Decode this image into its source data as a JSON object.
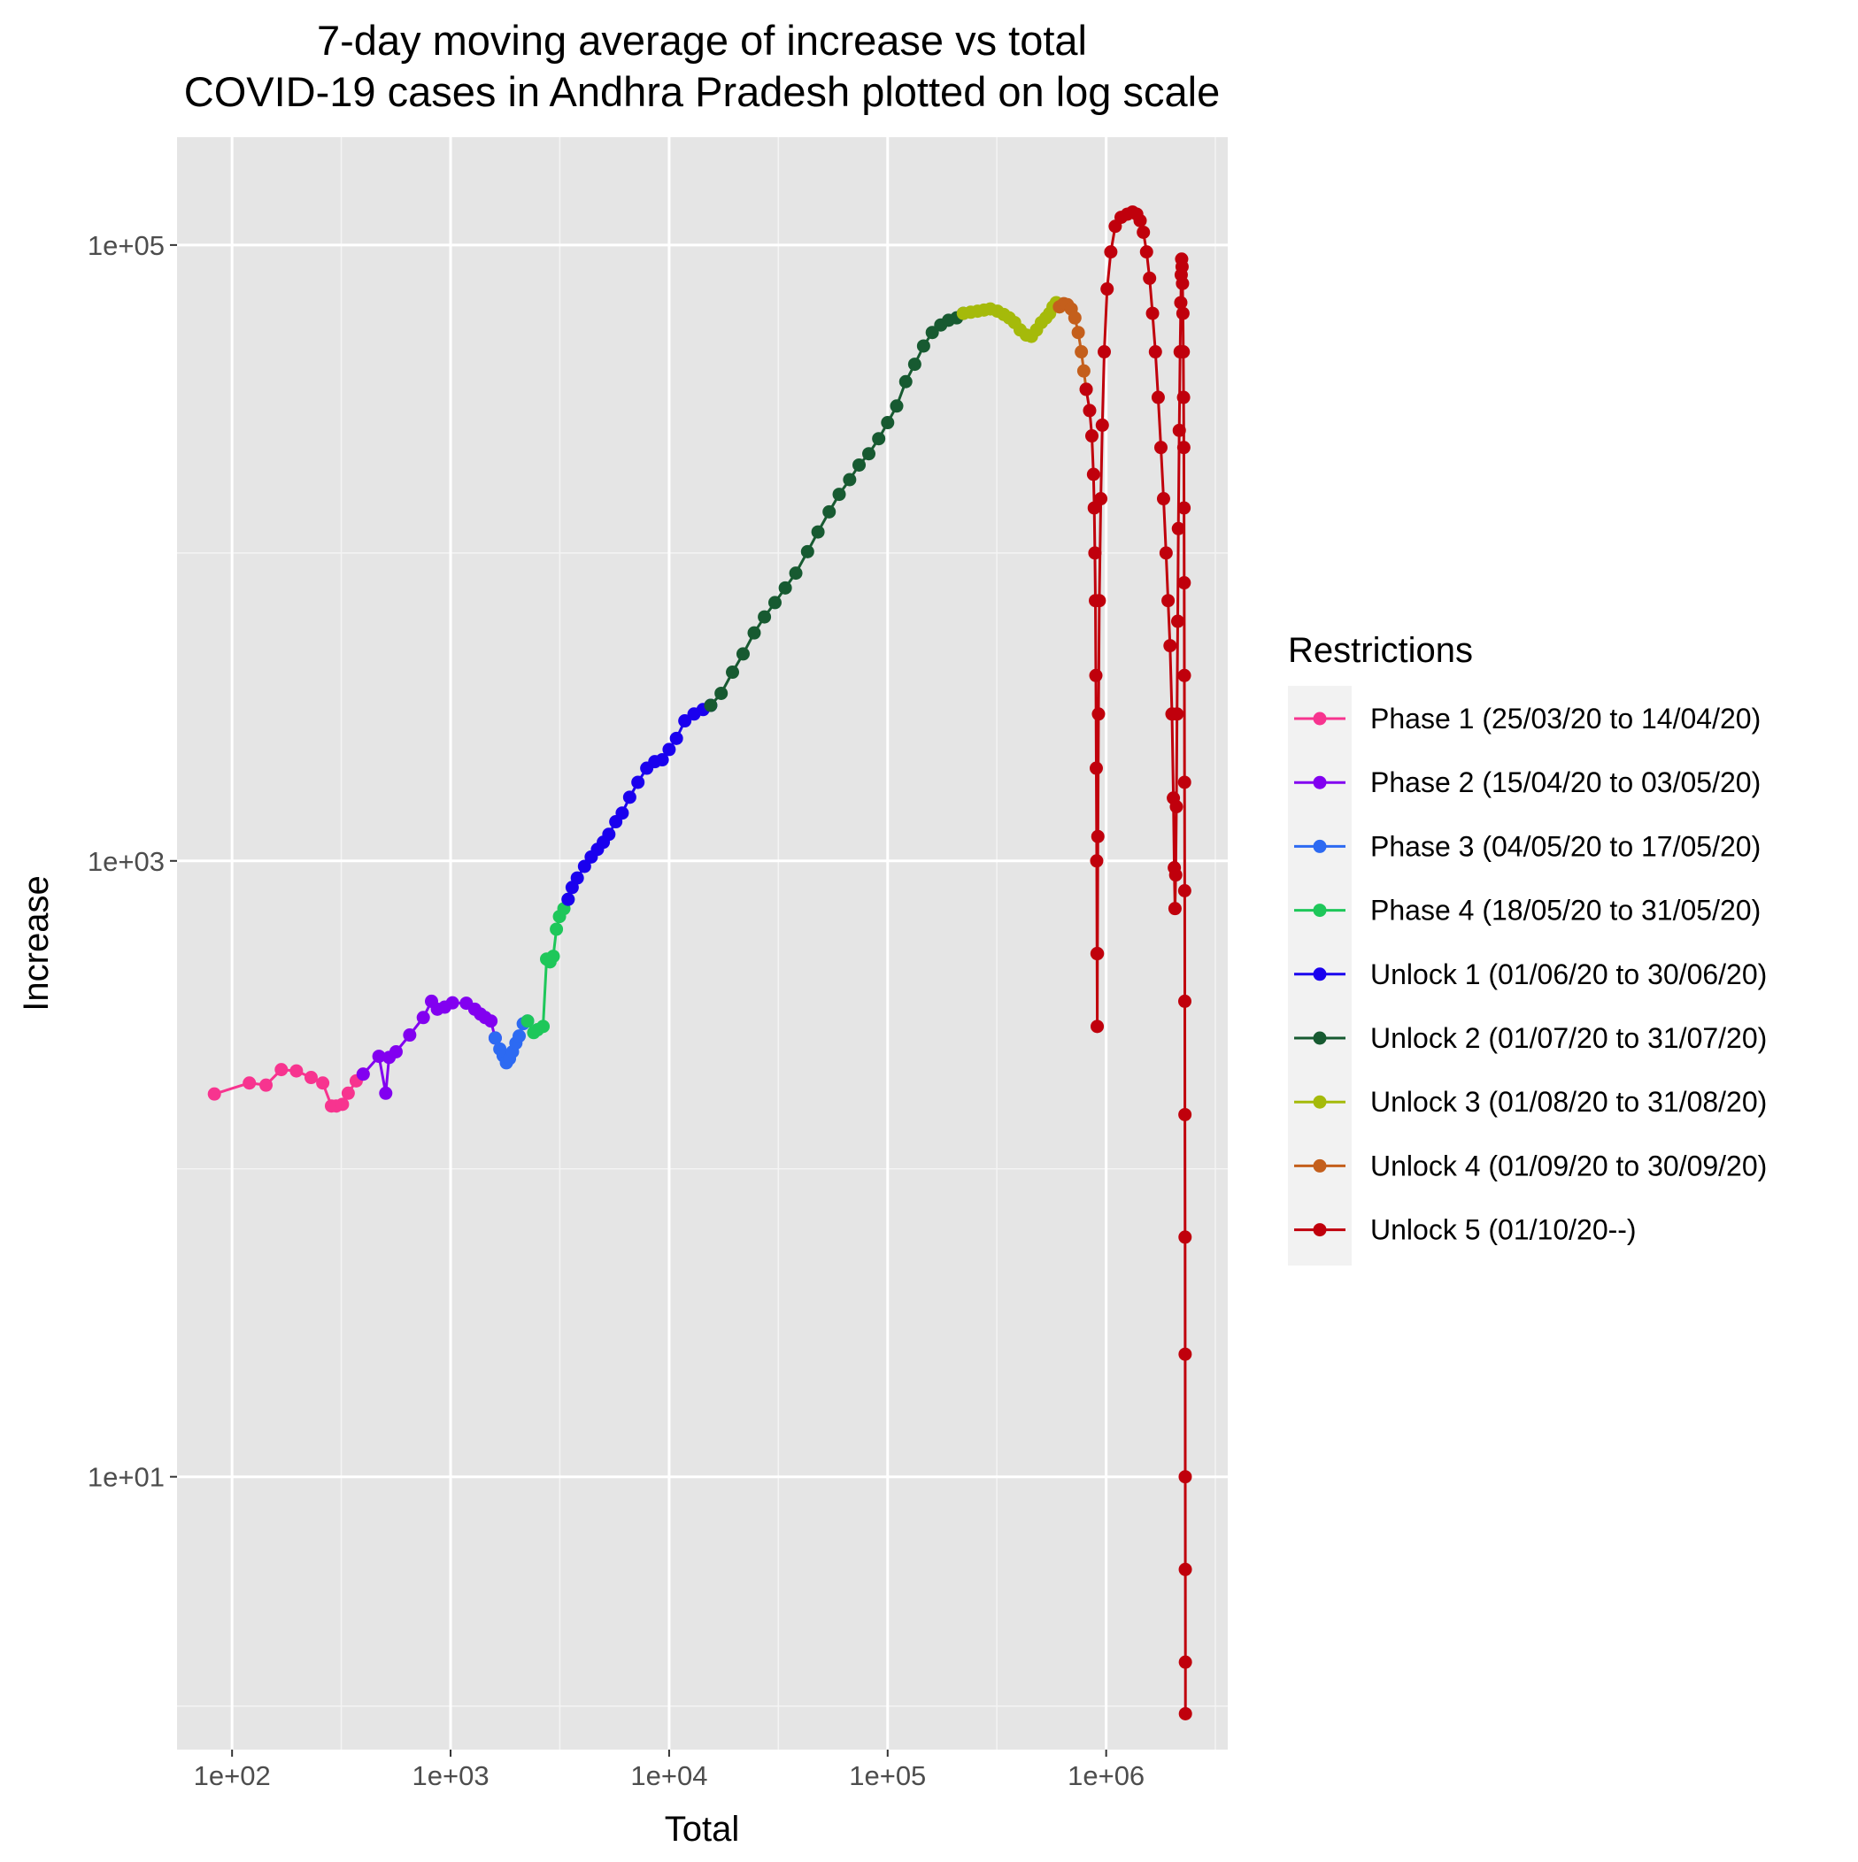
{
  "chart_data": {
    "type": "line",
    "title_lines": [
      "7-day moving average of increase vs total",
      "COVID-19 cases in Andhra Pradesh plotted on log scale"
    ],
    "xlabel": "Total",
    "ylabel": "Increase",
    "x_scale": "log10",
    "y_scale": "log10",
    "xlim": [
      56,
      3600000
    ],
    "ylim": [
      1.3,
      224000
    ],
    "x_ticks": [
      {
        "value": 100,
        "label": "1e+02"
      },
      {
        "value": 1000,
        "label": "1e+03"
      },
      {
        "value": 10000,
        "label": "1e+04"
      },
      {
        "value": 100000,
        "label": "1e+05"
      },
      {
        "value": 1000000,
        "label": "1e+06"
      }
    ],
    "y_ticks": [
      {
        "value": 10,
        "label": "1e+01"
      },
      {
        "value": 1000,
        "label": "1e+03"
      },
      {
        "value": 100000,
        "label": "1e+05"
      }
    ],
    "x_minor_ticks": [
      316,
      3160,
      31600,
      316000,
      3160000
    ],
    "y_minor_ticks": [
      1.8,
      100,
      10000
    ],
    "grid": true,
    "background": "#e5e5e5",
    "legend_title": "Restrictions",
    "legend_position": "right",
    "series": [
      {
        "name": "Phase 1 (25/03/20 to 14/04/20)",
        "color": "#f7348f",
        "points": [
          [
            83,
            175
          ],
          [
            120,
            190
          ],
          [
            143,
            187
          ],
          [
            168,
            210
          ],
          [
            197,
            208
          ],
          [
            230,
            198
          ],
          [
            260,
            190
          ],
          [
            285,
            160
          ],
          [
            300,
            160
          ],
          [
            320,
            162
          ],
          [
            340,
            176
          ],
          [
            370,
            193
          ],
          [
            398,
            203
          ]
        ]
      },
      {
        "name": "Phase 2 (15/04/20 to 03/05/20)",
        "color": "#8200f0",
        "points": [
          [
            398,
            203
          ],
          [
            470,
            232
          ],
          [
            505,
            176
          ],
          [
            523,
            230
          ],
          [
            563,
            240
          ],
          [
            650,
            272
          ],
          [
            750,
            310
          ],
          [
            818,
            350
          ],
          [
            870,
            330
          ],
          [
            940,
            335
          ],
          [
            1020,
            346
          ],
          [
            1180,
            345
          ],
          [
            1290,
            330
          ],
          [
            1370,
            318
          ],
          [
            1440,
            310
          ],
          [
            1530,
            302
          ],
          [
            1600,
            266
          ]
        ]
      },
      {
        "name": "Phase 3 (04/05/20 to 17/05/20)",
        "color": "#2d6af2",
        "points": [
          [
            1600,
            266
          ],
          [
            1680,
            245
          ],
          [
            1740,
            233
          ],
          [
            1800,
            221
          ],
          [
            1860,
            228
          ],
          [
            1920,
            240
          ],
          [
            1990,
            256
          ],
          [
            2060,
            270
          ],
          [
            2150,
            296
          ],
          [
            2250,
            302
          ]
        ]
      },
      {
        "name": "Phase 4 (18/05/20 to 31/05/20)",
        "color": "#1ec75a",
        "points": [
          [
            2250,
            302
          ],
          [
            2400,
            277
          ],
          [
            2500,
            283
          ],
          [
            2650,
            290
          ],
          [
            2750,
            480
          ],
          [
            2850,
            470
          ],
          [
            2950,
            490
          ],
          [
            3050,
            600
          ],
          [
            3150,
            660
          ],
          [
            3300,
            700
          ],
          [
            3450,
            750
          ]
        ]
      },
      {
        "name": "Unlock 1 (01/06/20 to 30/06/20)",
        "color": "#1a00ee",
        "points": [
          [
            3450,
            750
          ],
          [
            3600,
            820
          ],
          [
            3800,
            880
          ],
          [
            4100,
            960
          ],
          [
            4400,
            1030
          ],
          [
            4700,
            1090
          ],
          [
            5000,
            1150
          ],
          [
            5300,
            1220
          ],
          [
            5700,
            1340
          ],
          [
            6100,
            1430
          ],
          [
            6600,
            1610
          ],
          [
            7200,
            1800
          ],
          [
            7900,
            2000
          ],
          [
            8600,
            2100
          ],
          [
            9300,
            2130
          ],
          [
            10000,
            2300
          ],
          [
            10800,
            2500
          ],
          [
            11800,
            2850
          ],
          [
            13000,
            3000
          ],
          [
            14300,
            3100
          ],
          [
            15500,
            3200
          ]
        ]
      },
      {
        "name": "Unlock 2 (01/07/20 to 31/07/20)",
        "color": "#175a31",
        "points": [
          [
            15500,
            3200
          ],
          [
            17300,
            3500
          ],
          [
            19500,
            4100
          ],
          [
            21800,
            4700
          ],
          [
            24500,
            5500
          ],
          [
            27300,
            6200
          ],
          [
            30500,
            6900
          ],
          [
            34000,
            7700
          ],
          [
            38000,
            8600
          ],
          [
            43000,
            10100
          ],
          [
            48000,
            11700
          ],
          [
            54000,
            13600
          ],
          [
            60000,
            15500
          ],
          [
            67000,
            17300
          ],
          [
            74000,
            19300
          ],
          [
            82000,
            21000
          ],
          [
            91000,
            23500
          ],
          [
            100000,
            26500
          ],
          [
            110000,
            30000
          ],
          [
            121000,
            36000
          ],
          [
            133000,
            41000
          ],
          [
            146000,
            47000
          ],
          [
            160000,
            52000
          ],
          [
            175000,
            55000
          ],
          [
            190000,
            57000
          ],
          [
            207000,
            58000
          ],
          [
            222000,
            60000
          ]
        ]
      },
      {
        "name": "Unlock 3 (01/08/20 to 31/08/20)",
        "color": "#a5ba0a",
        "points": [
          [
            222000,
            60000
          ],
          [
            240000,
            60500
          ],
          [
            258000,
            61000
          ],
          [
            276000,
            61500
          ],
          [
            295000,
            62000
          ],
          [
            318000,
            61000
          ],
          [
            340000,
            59500
          ],
          [
            360000,
            58000
          ],
          [
            381000,
            56000
          ],
          [
            404000,
            53000
          ],
          [
            431000,
            51000
          ],
          [
            455000,
            50500
          ],
          [
            480000,
            53000
          ],
          [
            505000,
            56000
          ],
          [
            530000,
            58000
          ],
          [
            551000,
            60000
          ],
          [
            571000,
            63000
          ],
          [
            591000,
            65000
          ],
          [
            611000,
            63000
          ]
        ]
      },
      {
        "name": "Unlock 4 (01/09/20 to 30/09/20)",
        "color": "#c45f1c",
        "points": [
          [
            611000,
            63000
          ],
          [
            640000,
            64500
          ],
          [
            665000,
            64000
          ],
          [
            692000,
            62000
          ],
          [
            719000,
            58000
          ],
          [
            745000,
            52000
          ],
          [
            770000,
            45000
          ],
          [
            790000,
            39000
          ],
          [
            810000,
            34000
          ]
        ]
      },
      {
        "name": "Unlock 5 (01/10/20--)",
        "color": "#c0000c",
        "points": [
          [
            810000,
            34000
          ],
          [
            840000,
            29000
          ],
          [
            860000,
            24000
          ],
          [
            875000,
            18000
          ],
          [
            882000,
            14000
          ],
          [
            888000,
            10000
          ],
          [
            893000,
            7000
          ],
          [
            897000,
            4000
          ],
          [
            901000,
            2000
          ],
          [
            905000,
            1000
          ],
          [
            908000,
            500
          ],
          [
            910000,
            290
          ],
          [
            912000,
            500
          ],
          [
            916000,
            1200
          ],
          [
            922000,
            3000
          ],
          [
            930000,
            7000
          ],
          [
            945000,
            15000
          ],
          [
            960000,
            26000
          ],
          [
            980000,
            45000
          ],
          [
            1010000,
            72000
          ],
          [
            1050000,
            95000
          ],
          [
            1100000,
            115000
          ],
          [
            1170000,
            123000
          ],
          [
            1250000,
            126000
          ],
          [
            1320000,
            128000
          ],
          [
            1380000,
            126000
          ],
          [
            1430000,
            120000
          ],
          [
            1480000,
            110000
          ],
          [
            1530000,
            95000
          ],
          [
            1580000,
            78000
          ],
          [
            1630000,
            60000
          ],
          [
            1680000,
            45000
          ],
          [
            1730000,
            32000
          ],
          [
            1780000,
            22000
          ],
          [
            1830000,
            15000
          ],
          [
            1880000,
            10000
          ],
          [
            1920000,
            7000
          ],
          [
            1960000,
            5000
          ],
          [
            2000000,
            3000
          ],
          [
            2030000,
            1600
          ],
          [
            2050000,
            950
          ],
          [
            2065000,
            700
          ],
          [
            2080000,
            900
          ],
          [
            2095000,
            1500
          ],
          [
            2110000,
            3000
          ],
          [
            2125000,
            6000
          ],
          [
            2140000,
            12000
          ],
          [
            2160000,
            25000
          ],
          [
            2180000,
            45000
          ],
          [
            2195000,
            65000
          ],
          [
            2205000,
            80000
          ],
          [
            2215000,
            90000
          ],
          [
            2225000,
            85000
          ],
          [
            2235000,
            75000
          ],
          [
            2245000,
            60000
          ],
          [
            2253000,
            45000
          ],
          [
            2260000,
            32000
          ],
          [
            2266000,
            22000
          ],
          [
            2271000,
            14000
          ],
          [
            2276000,
            8000
          ],
          [
            2280000,
            4000
          ],
          [
            2284000,
            1800
          ],
          [
            2287000,
            800
          ],
          [
            2290000,
            350
          ],
          [
            2293000,
            150
          ],
          [
            2296000,
            60
          ],
          [
            2298000,
            25
          ],
          [
            2300000,
            10
          ],
          [
            2302000,
            5
          ],
          [
            2304000,
            2.5
          ],
          [
            2305000,
            1.7
          ]
        ]
      }
    ]
  }
}
